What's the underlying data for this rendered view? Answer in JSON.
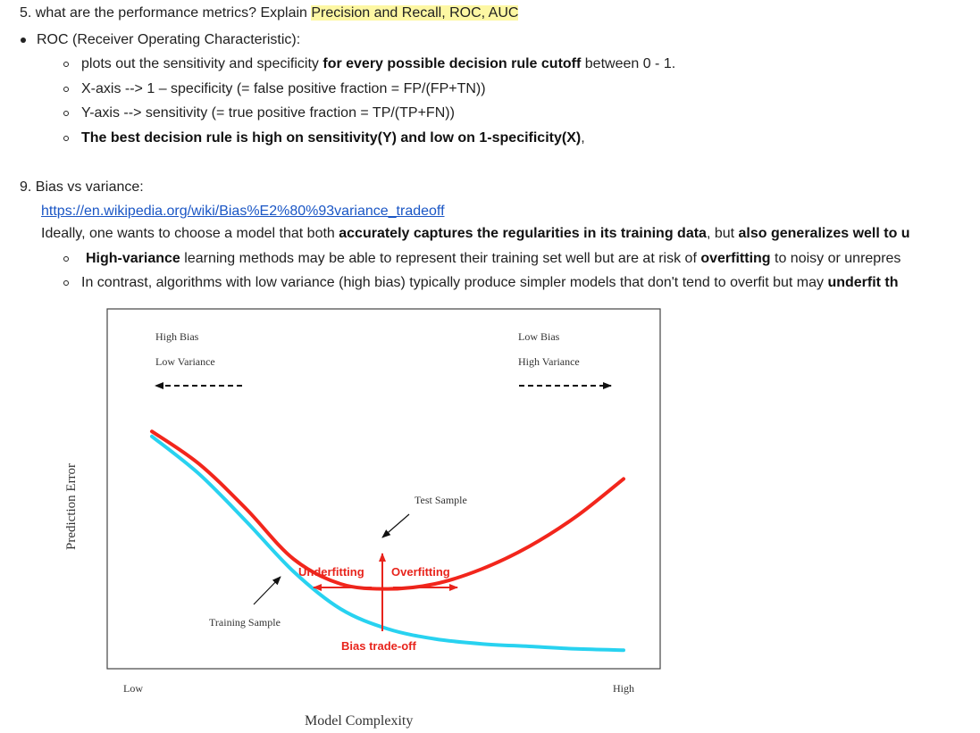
{
  "q5": {
    "prefix": "5. what are the performance metrics? Explain ",
    "highlight": "Precision and Recall, ROC, AUC",
    "roc_heading": "ROC (Receiver Operating Characteristic):",
    "sub1_a": "plots out the sensitivity and specificity ",
    "sub1_b": "for every possible decision rule cutoff",
    "sub1_c": " between 0 - 1.",
    "sub2": "X-axis --> 1 – specificity (= false positive fraction = FP/(FP+TN))",
    "sub3": "Y-axis --> sensitivity (= true positive fraction = TP/(TP+FN))",
    "sub4_bold": "The best decision rule is high on sensitivity(Y) and low on 1-specificity(X)",
    "sub4_tail": ","
  },
  "q9": {
    "heading": "9. Bias vs variance:",
    "link": "https://en.wikipedia.org/wiki/Bias%E2%80%93variance_tradeoff",
    "ideal_a": "Ideally, one wants to choose a model that both ",
    "ideal_b": "accurately captures the regularities in its training data",
    "ideal_c": ", but ",
    "ideal_d": "also generalizes well to u",
    "hv_bold": "High-variance",
    "hv_a": " learning methods may be able to represent their training set well but are at risk of ",
    "hv_bold2": "overfitting",
    "hv_b": " to noisy or unrepres",
    "lv_a": "In contrast, algorithms with low variance (high bias) typically produce simpler models that don't tend to overfit but may ",
    "lv_bold": "underfit th"
  },
  "figure": {
    "top_left_1": "High Bias",
    "top_left_2": "Low Variance",
    "top_right_1": "Low Bias",
    "top_right_2": "High Variance",
    "ylabel": "Prediction Error",
    "xlabel": "Model Complexity",
    "x_low": "Low",
    "x_high": "High",
    "test_label": "Test Sample",
    "train_label": "Training Sample",
    "underfitting": "Underfitting",
    "overfitting": "Overfitting",
    "tradeoff": "Bias trade-off",
    "colors": {
      "test": "#f2261c",
      "train": "#28d2f0",
      "annotation": "#e8241c"
    }
  },
  "chart_data": {
    "type": "line",
    "title": "",
    "xlabel": "Model Complexity",
    "ylabel": "Prediction Error",
    "series": [
      {
        "name": "Test Sample",
        "x": [
          0,
          0.1,
          0.2,
          0.3,
          0.4,
          0.5,
          0.6,
          0.7,
          0.8,
          0.9,
          1.0
        ],
        "values": [
          0.91,
          0.78,
          0.6,
          0.4,
          0.3,
          0.28,
          0.3,
          0.36,
          0.45,
          0.57,
          0.72
        ]
      },
      {
        "name": "Training Sample",
        "x": [
          0,
          0.1,
          0.2,
          0.3,
          0.4,
          0.5,
          0.6,
          0.7,
          0.8,
          0.9,
          1.0
        ],
        "values": [
          0.89,
          0.74,
          0.55,
          0.35,
          0.2,
          0.12,
          0.08,
          0.06,
          0.05,
          0.04,
          0.035
        ]
      }
    ]
  }
}
